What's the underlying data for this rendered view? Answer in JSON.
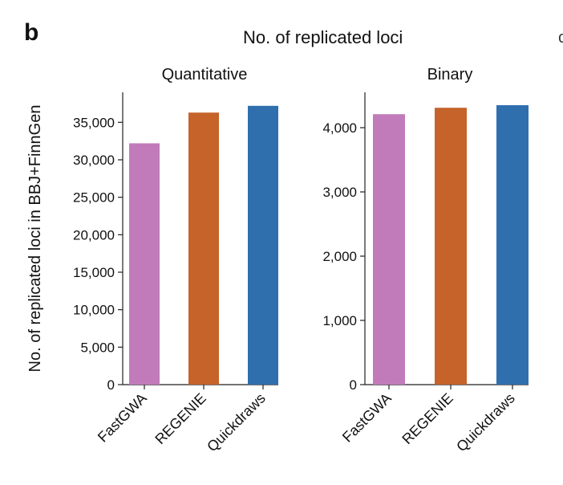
{
  "panel_letter": "b",
  "figure_title": "No. of replicated loci",
  "colors": {
    "FastGWA": "#c27bba",
    "REGENIE": "#c5632a",
    "Quickdraws": "#306fae"
  },
  "chart_data": [
    {
      "type": "bar",
      "title": "Quantitative",
      "ylabel": "No. of replicated loci in BBJ+FinnGen",
      "categories": [
        "FastGWA",
        "REGENIE",
        "Quickdraws"
      ],
      "values": [
        32200,
        36300,
        37200
      ],
      "ylim": [
        0,
        39000
      ],
      "yticks": [
        0,
        5000,
        10000,
        15000,
        20000,
        25000,
        30000,
        35000
      ],
      "ytick_labels": [
        "0",
        "5,000",
        "10,000",
        "15,000",
        "20,000",
        "25,000",
        "30,000",
        "35,000"
      ],
      "grid": false,
      "legend": "none"
    },
    {
      "type": "bar",
      "title": "Binary",
      "ylabel": "",
      "categories": [
        "FastGWA",
        "REGENIE",
        "Quickdraws"
      ],
      "values": [
        4210,
        4310,
        4350
      ],
      "ylim": [
        0,
        4550
      ],
      "yticks": [
        0,
        1000,
        2000,
        3000,
        4000
      ],
      "ytick_labels": [
        "0",
        "1,000",
        "2,000",
        "3,000",
        "4,000"
      ],
      "grid": false,
      "legend": "none"
    }
  ]
}
